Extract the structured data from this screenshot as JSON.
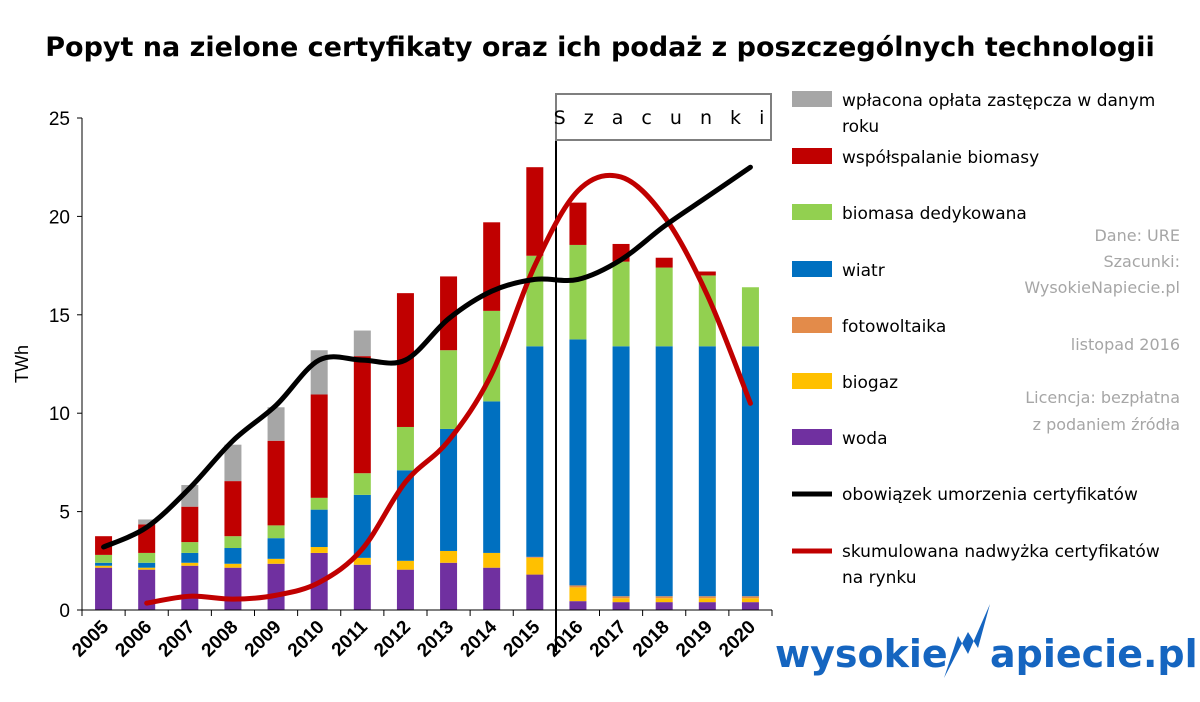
{
  "colors": {
    "woda": "#7030a0",
    "biogaz": "#ffc000",
    "fotowoltaika": "#e38b4a",
    "wiatr": "#0070c0",
    "biomasa_dedykowana": "#92d050",
    "wspolspalanie": "#c00000",
    "oplata": "#a6a6a6",
    "obowiazek": "#000000",
    "nadwyzka": "#c00000",
    "logo": "#1565c0",
    "note": "#a6a6a6"
  },
  "estimate_label": "S z a c u n k i",
  "notes": [
    "Dane: URE",
    "Szacunki:",
    "WysokieNapiecie.pl",
    "listopad 2016",
    "Licencja: bezpłatna",
    "z podaniem źródła"
  ],
  "logo": {
    "left": "wysokie",
    "right": "apiecie.pl",
    "icon": "lightning-n-icon"
  },
  "chart_data": {
    "type": "bar",
    "stacked": true,
    "title": "Popyt na zielone certyfikaty oraz ich podaż z poszczególnych technologii",
    "xlabel": "",
    "ylabel": "TWh",
    "ylim": [
      0,
      25
    ],
    "yticks": [
      0,
      5,
      10,
      15,
      20,
      25
    ],
    "grid": false,
    "legend_position": "right",
    "categories": [
      "2005",
      "2006",
      "2007",
      "2008",
      "2009",
      "2010",
      "2011",
      "2012",
      "2013",
      "2014",
      "2015",
      "2016",
      "2017",
      "2018",
      "2019",
      "2020"
    ],
    "estimate_start": "2016",
    "series": [
      {
        "name": "woda",
        "key": "woda",
        "values": [
          2.15,
          2.05,
          2.25,
          2.15,
          2.35,
          2.9,
          2.3,
          2.05,
          2.4,
          2.15,
          1.8,
          0.45,
          0.4,
          0.4,
          0.4,
          0.4
        ]
      },
      {
        "name": "biogaz",
        "key": "biogaz",
        "values": [
          0.1,
          0.1,
          0.15,
          0.2,
          0.25,
          0.3,
          0.35,
          0.45,
          0.6,
          0.75,
          0.85,
          0.7,
          0.2,
          0.2,
          0.2,
          0.2
        ]
      },
      {
        "name": "fotowoltaika",
        "key": "fotowoltaika",
        "values": [
          0,
          0,
          0,
          0,
          0,
          0,
          0,
          0,
          0,
          0,
          0.05,
          0.1,
          0.1,
          0.1,
          0.1,
          0.1
        ]
      },
      {
        "name": "wiatr",
        "key": "wiatr",
        "values": [
          0.15,
          0.25,
          0.5,
          0.8,
          1.05,
          1.9,
          3.2,
          4.6,
          6.2,
          7.7,
          10.7,
          12.5,
          12.7,
          12.7,
          12.7,
          12.7
        ]
      },
      {
        "name": "biomasa dedykowana",
        "key": "biomasa_dedykowana",
        "values": [
          0.4,
          0.5,
          0.55,
          0.6,
          0.65,
          0.6,
          1.1,
          2.2,
          4.0,
          4.6,
          4.6,
          4.8,
          4.3,
          4.0,
          3.6,
          3.0
        ]
      },
      {
        "name": "współspalanie biomasy",
        "key": "wspolspalanie",
        "values": [
          0.95,
          1.45,
          1.8,
          2.8,
          4.3,
          5.25,
          5.95,
          6.8,
          3.75,
          4.5,
          4.5,
          2.15,
          0.9,
          0.5,
          0.2,
          0
        ]
      },
      {
        "name": "wpłacona opłata zastępcza w danym roku",
        "key": "oplata",
        "values": [
          0,
          0.25,
          1.1,
          1.85,
          1.7,
          2.25,
          1.3,
          0,
          0,
          0,
          0,
          0,
          0,
          0,
          0,
          0
        ]
      }
    ],
    "lines": [
      {
        "name": "obowiązek umorzenia  certyfikatów",
        "key": "obowiazek",
        "x": [
          "2005",
          "2006",
          "2007",
          "2008",
          "2009",
          "2010",
          "2011",
          "2012",
          "2013",
          "2014",
          "2015",
          "2016",
          "2017",
          "2018",
          "2019",
          "2020"
        ],
        "values": [
          3.2,
          4.2,
          6.2,
          8.6,
          10.4,
          12.7,
          12.7,
          12.7,
          14.8,
          16.2,
          16.8,
          16.8,
          17.8,
          19.5,
          21.0,
          22.5
        ]
      },
      {
        "name": "skumulowana nadwyżka certyfikatów na rynku",
        "key": "nadwyzka",
        "x": [
          "2006",
          "2007",
          "2008",
          "2009",
          "2010",
          "2011",
          "2012",
          "2013",
          "2014",
          "2015",
          "2016",
          "2017",
          "2018",
          "2019",
          "2020"
        ],
        "values": [
          0.35,
          0.7,
          0.55,
          0.75,
          1.4,
          3.1,
          6.5,
          8.6,
          12.0,
          17.5,
          21.3,
          22.0,
          20.0,
          16.0,
          10.5
        ]
      }
    ],
    "legend_order": [
      "oplata",
      "wspolspalanie",
      "biomasa_dedykowana",
      "wiatr",
      "fotowoltaika",
      "biogaz",
      "woda",
      "obowiazek",
      "nadwyzka"
    ]
  }
}
